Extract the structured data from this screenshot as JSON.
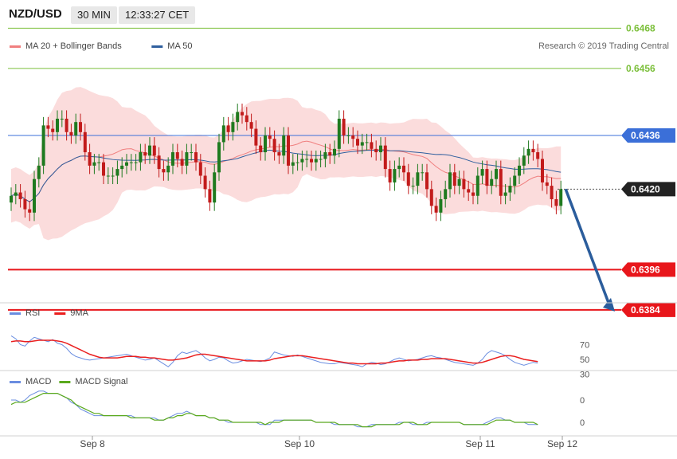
{
  "header": {
    "symbol": "NZD/USD",
    "interval": "30 MIN",
    "time": "12:33:27 CET"
  },
  "colors": {
    "bollinger": "#f07f7f",
    "bollinger_band_fill": "#fbdcdc",
    "ma50": "#2f5f9e",
    "resistance": "#7bbf3a",
    "pivot": "#3b6fd8",
    "support": "#e8161b",
    "candle_up": "#1f7a1f",
    "candle_down": "#c21b1b",
    "last_price_bg": "#222222",
    "rsi": "#6a8de0",
    "rsi_ma": "#ea1f1f",
    "macd": "#6a8de0",
    "macd_signal": "#5aa91d",
    "arrow": "#2b5d9c"
  },
  "chart_data": [
    {
      "type": "candlestick",
      "legend": [
        {
          "label": "MA 20 + Bollinger Bands",
          "color_key": "bollinger",
          "icon": "line-swatch"
        },
        {
          "label": "MA 50",
          "color_key": "ma50",
          "icon": "line-swatch"
        }
      ],
      "copyright": "Research © 2019 Trading Central",
      "ylim": [
        0.6376,
        0.6473
      ],
      "levels": [
        {
          "value": 0.6468,
          "label": "0.6468",
          "kind": "resistance"
        },
        {
          "value": 0.6456,
          "label": "0.6456",
          "kind": "resistance"
        },
        {
          "value": 0.6436,
          "label": "0.6436",
          "kind": "pivot"
        },
        {
          "value": 0.6396,
          "label": "0.6396",
          "kind": "support"
        },
        {
          "value": 0.6384,
          "label": "0.6384",
          "kind": "support"
        }
      ],
      "last_price": {
        "value": 0.642,
        "label": "0.6420"
      },
      "arrow": {
        "from": 0.642,
        "to": 0.6384
      },
      "x_labels": [
        {
          "label": "Sep 8",
          "index": 11
        },
        {
          "label": "Sep 10",
          "index": 42
        },
        {
          "label": "Sep 11",
          "index": 66
        },
        {
          "label": "Sep 12",
          "index": 77
        }
      ],
      "closes": [
        0.6418,
        0.6419,
        0.6417,
        0.6414,
        0.6413,
        0.6423,
        0.6427,
        0.6439,
        0.6438,
        0.6437,
        0.6441,
        0.6441,
        0.6437,
        0.6436,
        0.644,
        0.6437,
        0.6431,
        0.6427,
        0.6428,
        0.6428,
        0.6424,
        0.6424,
        0.6424,
        0.6426,
        0.6427,
        0.6428,
        0.6428,
        0.6428,
        0.6431,
        0.643,
        0.6433,
        0.643,
        0.6426,
        0.6425,
        0.6427,
        0.6431,
        0.6429,
        0.6427,
        0.6431,
        0.6431,
        0.6428,
        0.6424,
        0.642,
        0.6416,
        0.6425,
        0.6434,
        0.6439,
        0.6437,
        0.644,
        0.6443,
        0.6442,
        0.644,
        0.6438,
        0.6433,
        0.6431,
        0.6436,
        0.6435,
        0.6431,
        0.643,
        0.6436,
        0.6427,
        0.6428,
        0.6428,
        0.6429,
        0.6429,
        0.6428,
        0.6429,
        0.6429,
        0.6431,
        0.643,
        0.6432,
        0.6441,
        0.6436,
        0.6436,
        0.6435,
        0.6433,
        0.6434,
        0.6434,
        0.6432,
        0.6431,
        0.6433,
        0.6426,
        0.6422,
        0.6426,
        0.6427,
        0.6425,
        0.6421,
        0.6421,
        0.6425,
        0.6425,
        0.642,
        0.6415,
        0.6413,
        0.6417,
        0.642,
        0.6425,
        0.6421,
        0.6423,
        0.642,
        0.6419,
        0.6418,
        0.6424,
        0.6426,
        0.6421,
        0.6423,
        0.6426,
        0.6418,
        0.6419,
        0.6421,
        0.6424,
        0.6427,
        0.643,
        0.6432,
        0.6431,
        0.6429,
        0.6422,
        0.6421,
        0.6417,
        0.6415,
        0.642
      ]
    },
    {
      "type": "line",
      "legend": [
        {
          "label": "RSI",
          "color_key": "rsi"
        },
        {
          "label": "9MA",
          "color_key": "rsi_ma"
        }
      ],
      "ylim": [
        20,
        85
      ],
      "y_ticks": [
        70,
        50,
        30
      ],
      "series": [
        {
          "name": "RSI",
          "values": [
            82,
            78,
            70,
            68,
            75,
            80,
            78,
            76,
            74,
            77,
            72,
            70,
            65,
            58,
            54,
            52,
            50,
            49,
            50,
            51,
            52,
            53,
            54,
            55,
            56,
            57,
            55,
            53,
            51,
            49,
            50,
            52,
            48,
            44,
            40,
            46,
            55,
            60,
            58,
            60,
            62,
            58,
            52,
            48,
            50,
            53,
            52,
            48,
            45,
            46,
            48,
            50,
            49,
            48,
            47,
            49,
            52,
            60,
            58,
            56,
            55,
            54,
            56,
            54,
            52,
            50,
            48,
            46,
            45,
            44,
            44,
            46,
            45,
            44,
            43,
            42,
            40,
            44,
            46,
            45,
            43,
            44,
            47,
            50,
            52,
            50,
            48,
            49,
            50,
            52,
            54,
            55,
            53,
            52,
            50,
            48,
            46,
            45,
            44,
            43,
            42,
            45,
            50,
            58,
            62,
            60,
            58,
            55,
            50,
            46,
            44,
            42,
            44,
            46,
            45
          ]
        },
        {
          "name": "9MA",
          "values": [
            74,
            75,
            75,
            74,
            74,
            75,
            76,
            76,
            76,
            76,
            75,
            74,
            72,
            69,
            66,
            63,
            60,
            57,
            55,
            53,
            52,
            52,
            52,
            52,
            53,
            54,
            54,
            54,
            53,
            53,
            52,
            52,
            51,
            50,
            49,
            49,
            50,
            51,
            52,
            54,
            56,
            57,
            57,
            56,
            55,
            54,
            53,
            52,
            51,
            50,
            49,
            48,
            48,
            48,
            48,
            48,
            49,
            51,
            52,
            53,
            54,
            55,
            55,
            55,
            54,
            53,
            52,
            51,
            50,
            49,
            48,
            47,
            46,
            45,
            45,
            44,
            44,
            44,
            44,
            44,
            45,
            45,
            46,
            47,
            48,
            48,
            49,
            49,
            49,
            50,
            50,
            51,
            51,
            51,
            51,
            50,
            49,
            48,
            47,
            46,
            45,
            45,
            46,
            48,
            50,
            52,
            54,
            55,
            55,
            54,
            52,
            50,
            49,
            48,
            47
          ]
        }
      ]
    },
    {
      "type": "line",
      "legend": [
        {
          "label": "MACD",
          "color_key": "macd"
        },
        {
          "label": "MACD Signal",
          "color_key": "macd_signal"
        }
      ],
      "ylim": [
        -0.0009,
        0.0011
      ],
      "y_ticks": [
        {
          "value": 0.0005,
          "label": "0"
        },
        {
          "value": -0.0005,
          "label": "0"
        }
      ],
      "series": [
        {
          "name": "MACD",
          "values": [
            0.0005,
            0.0005,
            0.0004,
            0.0005,
            0.0007,
            0.0008,
            0.0009,
            0.0009,
            0.0008,
            0.0008,
            0.0008,
            0.0007,
            0.0006,
            0.0004,
            0.0003,
            0.0001,
            0.0,
            -0.0001,
            -0.0002,
            -0.0002,
            -0.0002,
            -0.0002,
            -0.0002,
            -0.0002,
            -0.0002,
            -0.0002,
            -0.0002,
            -0.0003,
            -0.0003,
            -0.0003,
            -0.0003,
            -0.0003,
            -0.0004,
            -0.0004,
            -0.0003,
            -0.0002,
            -0.0001,
            -0.0001,
            0.0,
            -0.0001,
            -0.0002,
            -0.0002,
            -0.0002,
            -0.0003,
            -0.0003,
            -0.0004,
            -0.0004,
            -0.0005,
            -0.0005,
            -0.0005,
            -0.0005,
            -0.0005,
            -0.0005,
            -0.0005,
            -0.0006,
            -0.0006,
            -0.0006,
            -0.0004,
            -0.0004,
            -0.0004,
            -0.0004,
            -0.0004,
            -0.0004,
            -0.0004,
            -0.0004,
            -0.0004,
            -0.0005,
            -0.0005,
            -0.0005,
            -0.0005,
            -0.0006,
            -0.0006,
            -0.0006,
            -0.0006,
            -0.0006,
            -0.0007,
            -0.0007,
            -0.0007,
            -0.0006,
            -0.0006,
            -0.0006,
            -0.0006,
            -0.0006,
            -0.0006,
            -0.0005,
            -0.0005,
            -0.0005,
            -0.0006,
            -0.0006,
            -0.0006,
            -0.0005,
            -0.0005,
            -0.0005,
            -0.0005,
            -0.0005,
            -0.0005,
            -0.0005,
            -0.0005,
            -0.0006,
            -0.0006,
            -0.0006,
            -0.0006,
            -0.0006,
            -0.0005,
            -0.0004,
            -0.0003,
            -0.0003,
            -0.0004,
            -0.0004,
            -0.0005,
            -0.0005,
            -0.0005,
            -0.0006,
            -0.0006,
            -0.0006
          ]
        },
        {
          "name": "MACD Signal",
          "values": [
            0.0003,
            0.0004,
            0.0004,
            0.0004,
            0.0005,
            0.0006,
            0.0007,
            0.0008,
            0.0008,
            0.0008,
            0.0008,
            0.0007,
            0.0006,
            0.0005,
            0.0003,
            0.0002,
            0.0001,
            0.0,
            -0.0001,
            -0.0001,
            -0.0002,
            -0.0002,
            -0.0002,
            -0.0002,
            -0.0002,
            -0.0002,
            -0.0003,
            -0.0003,
            -0.0003,
            -0.0003,
            -0.0003,
            -0.0004,
            -0.0004,
            -0.0004,
            -0.0003,
            -0.0003,
            -0.0002,
            -0.0002,
            -0.0001,
            -0.0001,
            -0.0002,
            -0.0002,
            -0.0002,
            -0.0003,
            -0.0003,
            -0.0004,
            -0.0004,
            -0.0004,
            -0.0005,
            -0.0005,
            -0.0005,
            -0.0005,
            -0.0005,
            -0.0005,
            -0.0005,
            -0.0006,
            -0.0005,
            -0.0005,
            -0.0005,
            -0.0004,
            -0.0004,
            -0.0004,
            -0.0004,
            -0.0004,
            -0.0004,
            -0.0004,
            -0.0005,
            -0.0005,
            -0.0005,
            -0.0005,
            -0.0005,
            -0.0006,
            -0.0006,
            -0.0006,
            -0.0006,
            -0.0006,
            -0.0007,
            -0.0007,
            -0.0007,
            -0.0006,
            -0.0006,
            -0.0006,
            -0.0006,
            -0.0006,
            -0.0006,
            -0.0005,
            -0.0005,
            -0.0005,
            -0.0006,
            -0.0006,
            -0.0006,
            -0.0005,
            -0.0005,
            -0.0005,
            -0.0005,
            -0.0005,
            -0.0005,
            -0.0005,
            -0.0006,
            -0.0006,
            -0.0006,
            -0.0006,
            -0.0006,
            -0.0006,
            -0.0005,
            -0.0004,
            -0.0004,
            -0.0004,
            -0.0004,
            -0.0005,
            -0.0005,
            -0.0005,
            -0.0005,
            -0.0005,
            -0.0006
          ]
        }
      ]
    }
  ]
}
